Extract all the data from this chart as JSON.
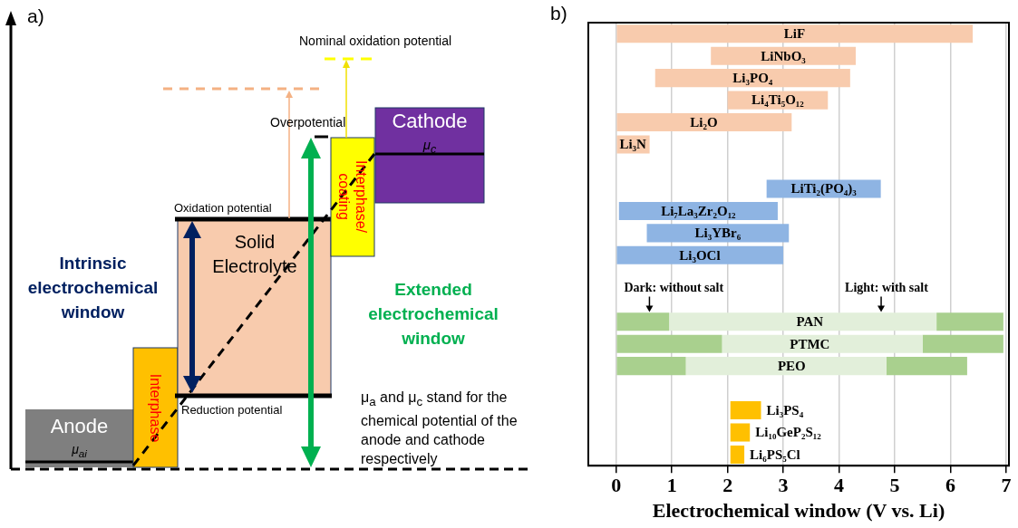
{
  "chart_data": [
    {
      "type": "other",
      "title": "a)",
      "annotations": [
        "Nominal oxidation potential",
        "Overpotential",
        "Cathode",
        "μ$_{c}$",
        "Interphase/ coating",
        "Oxidation potential",
        "Solid Electrolyte",
        "Intrinsic electrochemical window",
        "Extended electrochemical window",
        "Interphase",
        "Reduction potential",
        "Anode",
        "μ$_{ai}$",
        "μ$_{a}$ and μ$_{c}$ stand for the chemical potential of the anode and cathode respectively"
      ]
    },
    {
      "type": "bar",
      "orientation": "horizontal",
      "title": "b)",
      "xlabel": "Electrochemical window (V vs. Li)",
      "categories": [
        "LiF",
        "LiNbO₃",
        "Li₃PO₄",
        "Li₄Ti₅O₁₂",
        "Li₂O",
        "Li₃N",
        null,
        "LiTi₂(PO₄)₃",
        "Li₇La₃Zr₂O₁₂",
        "Li₃YBr₆",
        "Li₃OCl",
        null,
        null,
        "PAN",
        "PTMC",
        "PEO",
        null,
        "Li₃PS₄",
        "Li₁₀GeP₂S₁₂",
        "Li₆PS₅Cl"
      ],
      "series": [
        {
          "colors": [
            "#f8cbad",
            "#f8cbad",
            "#f8cbad",
            "#f8cbad",
            "#f8cbad",
            "#f8cbad",
            null,
            "#8eb4e3",
            "#8eb4e3",
            "#8eb4e3",
            "#8eb4e3",
            null,
            null,
            "#a9d08e",
            "#a9d08e",
            "#a9d08e",
            null,
            "#ffc000",
            "#ffc000",
            "#ffc000"
          ],
          "base": [
            0,
            1.7,
            0.7,
            2.0,
            0,
            0,
            null,
            2.7,
            0.05,
            0.55,
            0,
            null,
            null,
            0,
            0,
            0,
            null,
            2.05,
            2.05,
            2.05
          ],
          "values": [
            6.4,
            2.6,
            3.5,
            1.8,
            3.15,
            0.6,
            null,
            2.05,
            2.85,
            2.55,
            3.0,
            null,
            null,
            0.95,
            1.9,
            1.25,
            null,
            0.55,
            0.35,
            0.25
          ]
        },
        {
          "color": "#e2efda",
          "base": [
            null,
            null,
            null,
            null,
            null,
            null,
            null,
            null,
            null,
            null,
            null,
            null,
            null,
            0.95,
            1.9,
            1.25,
            null,
            null,
            null,
            null
          ],
          "values": [
            null,
            null,
            null,
            null,
            null,
            null,
            null,
            null,
            null,
            null,
            null,
            null,
            null,
            4.8,
            3.6,
            3.6,
            null,
            null,
            null,
            null
          ]
        },
        {
          "color": "#a9d08e",
          "base": [
            null,
            null,
            null,
            null,
            null,
            null,
            null,
            null,
            null,
            null,
            null,
            null,
            null,
            5.75,
            5.5,
            4.85,
            null,
            null,
            null,
            null
          ],
          "values": [
            null,
            null,
            null,
            null,
            null,
            null,
            null,
            null,
            null,
            null,
            null,
            null,
            null,
            1.2,
            1.45,
            1.45,
            null,
            null,
            null,
            null
          ]
        }
      ],
      "xlim": [
        -0.5,
        7.05
      ],
      "xticks": [
        0,
        1,
        2,
        3,
        4,
        5,
        6,
        7
      ],
      "grid": "x",
      "tick_labels": "x",
      "annotations": [
        "Dark: without salt",
        "Light: with salt"
      ]
    }
  ]
}
